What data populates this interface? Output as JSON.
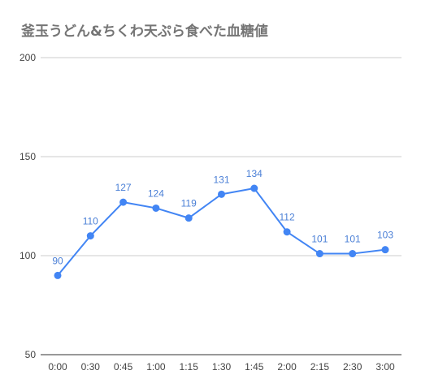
{
  "chart_data": {
    "type": "line",
    "title": "釜玉うどん&ちくわ天ぷら食べた血糖値",
    "categories": [
      "0:00",
      "0:30",
      "0:45",
      "1:00",
      "1:15",
      "1:30",
      "1:45",
      "2:00",
      "2:15",
      "2:30",
      "3:00"
    ],
    "series": [
      {
        "values": [
          90,
          110,
          127,
          124,
          119,
          131,
          134,
          112,
          101,
          101,
          103
        ],
        "color": "#4285f4"
      }
    ],
    "ylim": [
      50,
      200
    ],
    "yticks": [
      50,
      100,
      150,
      200
    ],
    "grid": true,
    "legend": "none",
    "data_labels": true,
    "colors": {
      "line": "#4285f4",
      "data_label": "#4a7fd6",
      "grid": "#cccccc",
      "baseline": "#333333",
      "title": "#757575",
      "tick_label": "#444444"
    }
  }
}
